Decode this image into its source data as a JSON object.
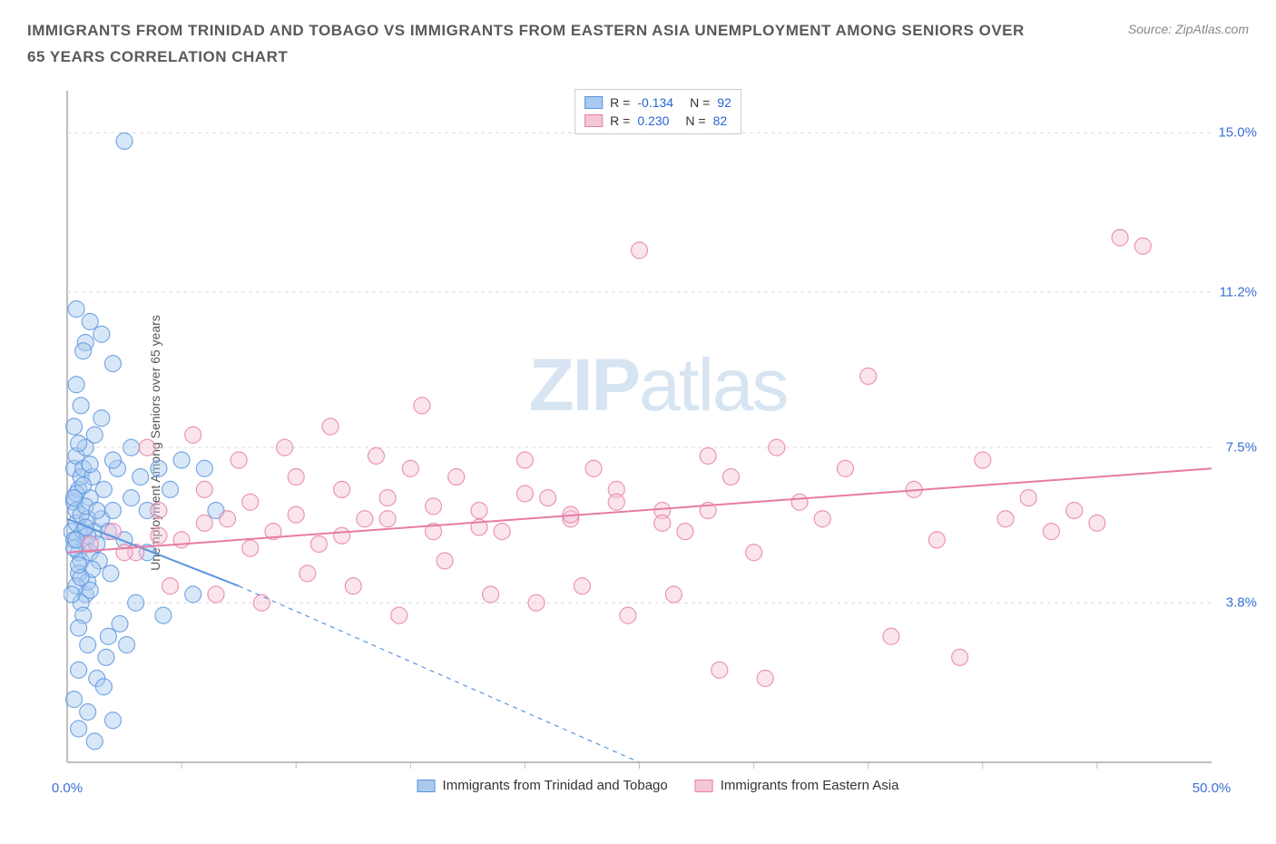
{
  "title": "IMMIGRANTS FROM TRINIDAD AND TOBAGO VS IMMIGRANTS FROM EASTERN ASIA UNEMPLOYMENT AMONG SENIORS OVER 65 YEARS CORRELATION CHART",
  "source": "Source: ZipAtlas.com",
  "watermark_bold": "ZIP",
  "watermark_light": "atlas",
  "chart": {
    "type": "scatter",
    "ylabel": "Unemployment Among Seniors over 65 years",
    "xlim": [
      0,
      50
    ],
    "ylim": [
      0,
      16
    ],
    "xtick_labels": [
      "0.0%",
      "50.0%"
    ],
    "xtick_positions": [
      0,
      50
    ],
    "xtick_minor_positions": [
      5,
      10,
      15,
      20,
      25,
      30,
      35,
      40,
      45
    ],
    "ytick_labels": [
      "3.8%",
      "7.5%",
      "11.2%",
      "15.0%"
    ],
    "ytick_positions": [
      3.8,
      7.5,
      11.2,
      15.0
    ],
    "tick_color": "#3b6fd6",
    "grid_color": "#d9d9d9",
    "plot_border_color": "#bfbfbf",
    "background_color": "#ffffff",
    "marker_radius": 9,
    "marker_opacity": 0.45,
    "line_width": 2,
    "series": [
      {
        "id": "trinidad",
        "label": "Immigrants from Trinidad and Tobago",
        "color_fill": "#a9c9ef",
        "color_stroke": "#5a94de",
        "r_label": "R =",
        "r_value": "-0.134",
        "n_label": "N =",
        "n_value": "92",
        "regression": {
          "x1": 0,
          "y1": 5.8,
          "x2": 7.5,
          "y2": 4.2,
          "dash_x2": 25,
          "dash_y2": 0
        },
        "points": [
          [
            0.2,
            5.5
          ],
          [
            0.3,
            5.3
          ],
          [
            0.4,
            5.7
          ],
          [
            0.5,
            5.0
          ],
          [
            0.3,
            6.2
          ],
          [
            0.6,
            4.8
          ],
          [
            0.4,
            6.0
          ],
          [
            0.7,
            5.5
          ],
          [
            0.5,
            6.5
          ],
          [
            0.8,
            5.2
          ],
          [
            0.3,
            7.0
          ],
          [
            0.6,
            6.8
          ],
          [
            0.4,
            7.3
          ],
          [
            0.9,
            5.8
          ],
          [
            0.7,
            7.0
          ],
          [
            1.0,
            5.0
          ],
          [
            0.5,
            4.5
          ],
          [
            0.8,
            4.0
          ],
          [
            1.2,
            5.5
          ],
          [
            0.6,
            3.8
          ],
          [
            1.0,
            6.3
          ],
          [
            1.3,
            5.2
          ],
          [
            0.9,
            4.3
          ],
          [
            1.5,
            5.8
          ],
          [
            0.4,
            4.2
          ],
          [
            0.7,
            3.5
          ],
          [
            1.1,
            6.8
          ],
          [
            1.8,
            5.5
          ],
          [
            0.5,
            3.2
          ],
          [
            1.4,
            4.8
          ],
          [
            2.0,
            6.0
          ],
          [
            0.8,
            7.5
          ],
          [
            2.2,
            7.0
          ],
          [
            1.6,
            6.5
          ],
          [
            2.5,
            5.3
          ],
          [
            1.9,
            4.5
          ],
          [
            2.8,
            6.3
          ],
          [
            0.3,
            8.0
          ],
          [
            1.2,
            7.8
          ],
          [
            2.0,
            7.2
          ],
          [
            3.2,
            6.8
          ],
          [
            0.6,
            8.5
          ],
          [
            1.5,
            8.2
          ],
          [
            3.5,
            6.0
          ],
          [
            4.0,
            7.0
          ],
          [
            0.4,
            9.0
          ],
          [
            1.8,
            3.0
          ],
          [
            2.3,
            3.3
          ],
          [
            0.9,
            2.8
          ],
          [
            1.7,
            2.5
          ],
          [
            3.0,
            3.8
          ],
          [
            0.5,
            2.2
          ],
          [
            1.3,
            2.0
          ],
          [
            2.6,
            2.8
          ],
          [
            0.8,
            10.0
          ],
          [
            1.0,
            10.5
          ],
          [
            1.5,
            10.2
          ],
          [
            0.4,
            10.8
          ],
          [
            2.0,
            9.5
          ],
          [
            0.7,
            9.8
          ],
          [
            2.8,
            7.5
          ],
          [
            3.5,
            5.0
          ],
          [
            4.5,
            6.5
          ],
          [
            5.0,
            7.2
          ],
          [
            0.3,
            1.5
          ],
          [
            0.9,
            1.2
          ],
          [
            1.6,
            1.8
          ],
          [
            0.5,
            0.8
          ],
          [
            1.2,
            0.5
          ],
          [
            2.0,
            1.0
          ],
          [
            6.0,
            7.0
          ],
          [
            5.5,
            4.0
          ],
          [
            4.2,
            3.5
          ],
          [
            6.5,
            6.0
          ],
          [
            2.5,
            14.8
          ],
          [
            0.2,
            4.0
          ],
          [
            0.6,
            5.9
          ],
          [
            0.4,
            6.4
          ],
          [
            1.1,
            4.6
          ],
          [
            0.8,
            6.1
          ],
          [
            0.3,
            5.1
          ],
          [
            0.9,
            5.4
          ],
          [
            0.5,
            7.6
          ],
          [
            1.0,
            4.1
          ],
          [
            0.7,
            6.6
          ],
          [
            0.4,
            5.3
          ],
          [
            1.3,
            6.0
          ],
          [
            0.6,
            4.4
          ],
          [
            0.8,
            5.6
          ],
          [
            0.3,
            6.3
          ],
          [
            1.0,
            7.1
          ],
          [
            0.5,
            4.7
          ]
        ]
      },
      {
        "id": "eastasia",
        "label": "Immigrants from Eastern Asia",
        "color_fill": "#f5c6d6",
        "color_stroke": "#e87ba5",
        "r_label": "R =",
        "r_value": "0.230",
        "n_label": "N =",
        "n_value": "82",
        "regression": {
          "x1": 0,
          "y1": 5.0,
          "x2": 50,
          "y2": 7.0
        },
        "points": [
          [
            1.0,
            5.2
          ],
          [
            2.0,
            5.5
          ],
          [
            3.0,
            5.0
          ],
          [
            4.0,
            6.0
          ],
          [
            5.0,
            5.3
          ],
          [
            6.0,
            6.5
          ],
          [
            7.0,
            5.8
          ],
          [
            8.0,
            6.2
          ],
          [
            9.0,
            5.5
          ],
          [
            10.0,
            6.8
          ],
          [
            11.0,
            5.2
          ],
          [
            12.0,
            6.5
          ],
          [
            13.0,
            5.8
          ],
          [
            14.0,
            6.3
          ],
          [
            15.0,
            7.0
          ],
          [
            16.0,
            5.5
          ],
          [
            17.0,
            6.8
          ],
          [
            18.0,
            6.0
          ],
          [
            19.0,
            5.5
          ],
          [
            20.0,
            7.2
          ],
          [
            21.0,
            6.3
          ],
          [
            22.0,
            5.8
          ],
          [
            23.0,
            7.0
          ],
          [
            24.0,
            6.5
          ],
          [
            25.0,
            12.2
          ],
          [
            26.0,
            6.0
          ],
          [
            27.0,
            5.5
          ],
          [
            28.0,
            7.3
          ],
          [
            29.0,
            6.8
          ],
          [
            30.0,
            5.0
          ],
          [
            31.0,
            7.5
          ],
          [
            32.0,
            6.2
          ],
          [
            33.0,
            5.8
          ],
          [
            34.0,
            7.0
          ],
          [
            35.0,
            9.2
          ],
          [
            36.0,
            3.0
          ],
          [
            37.0,
            6.5
          ],
          [
            38.0,
            5.3
          ],
          [
            39.0,
            2.5
          ],
          [
            40.0,
            7.2
          ],
          [
            41.0,
            5.8
          ],
          [
            42.0,
            6.3
          ],
          [
            43.0,
            5.5
          ],
          [
            44.0,
            6.0
          ],
          [
            45.0,
            5.7
          ],
          [
            46.0,
            12.5
          ],
          [
            47.0,
            12.3
          ],
          [
            4.5,
            4.2
          ],
          [
            6.5,
            4.0
          ],
          [
            8.5,
            3.8
          ],
          [
            10.5,
            4.5
          ],
          [
            12.5,
            4.2
          ],
          [
            14.5,
            3.5
          ],
          [
            16.5,
            4.8
          ],
          [
            18.5,
            4.0
          ],
          [
            20.5,
            3.8
          ],
          [
            22.5,
            4.2
          ],
          [
            24.5,
            3.5
          ],
          [
            26.5,
            4.0
          ],
          [
            28.5,
            2.2
          ],
          [
            30.5,
            2.0
          ],
          [
            3.5,
            7.5
          ],
          [
            5.5,
            7.8
          ],
          [
            7.5,
            7.2
          ],
          [
            9.5,
            7.5
          ],
          [
            11.5,
            8.0
          ],
          [
            13.5,
            7.3
          ],
          [
            15.5,
            8.5
          ],
          [
            2.5,
            5.0
          ],
          [
            4.0,
            5.4
          ],
          [
            6.0,
            5.7
          ],
          [
            8.0,
            5.1
          ],
          [
            10.0,
            5.9
          ],
          [
            12.0,
            5.4
          ],
          [
            14.0,
            5.8
          ],
          [
            16.0,
            6.1
          ],
          [
            18.0,
            5.6
          ],
          [
            20.0,
            6.4
          ],
          [
            22.0,
            5.9
          ],
          [
            24.0,
            6.2
          ],
          [
            26.0,
            5.7
          ],
          [
            28.0,
            6.0
          ]
        ]
      }
    ],
    "bottom_legend": [
      {
        "key": "trinidad"
      },
      {
        "key": "eastasia"
      }
    ]
  }
}
